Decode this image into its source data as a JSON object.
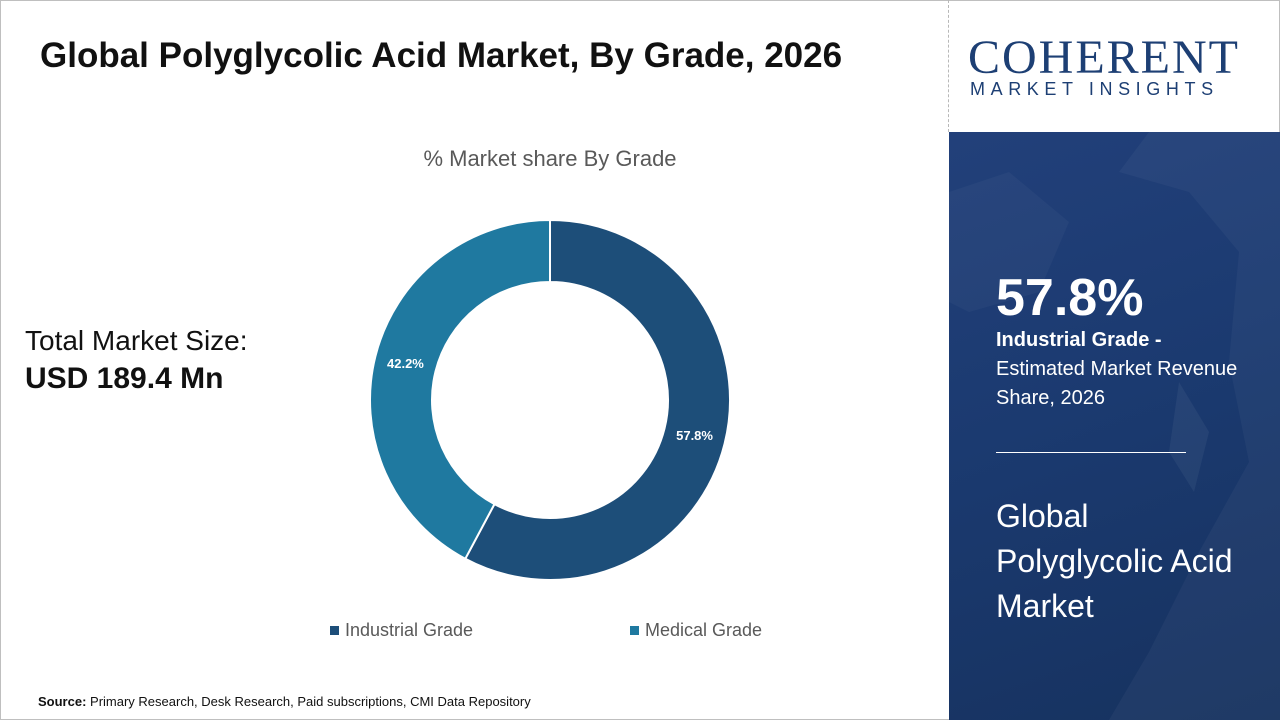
{
  "header": {
    "title": "Global Polyglycolic Acid Market, By Grade, 2026"
  },
  "logo": {
    "word": "COHERENT",
    "subtitle": "MARKET INSIGHTS"
  },
  "summary": {
    "size_label": "Total Market Size:",
    "size_value": "USD 189.4 Mn"
  },
  "panel": {
    "percent": "57.8%",
    "segment_name": "Industrial Grade -",
    "description": "Estimated Market Revenue Share, 2026",
    "market_name": "Global Polyglycolic Acid Market"
  },
  "source": {
    "label": "Source:",
    "text": "Primary Research, Desk Research, Paid subscriptions, CMI Data Repository"
  },
  "colors": {
    "industrial": "#1d4e79",
    "medical": "#1f79a0",
    "panel_bg": "#1d3d74",
    "brand": "#1d3f74"
  },
  "chart_data": {
    "type": "pie",
    "subtype": "donut",
    "title": "% Market share By Grade",
    "categories": [
      "Industrial Grade",
      "Medical Grade"
    ],
    "values": [
      57.8,
      42.2
    ],
    "data_labels": [
      "57.8%",
      "42.2%"
    ],
    "unit": "%",
    "legend_placement": "bottom"
  }
}
